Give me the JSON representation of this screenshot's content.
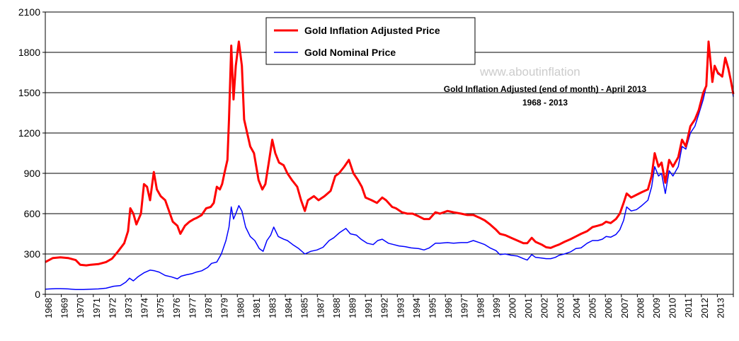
{
  "chart_data": {
    "type": "line",
    "title": "Gold Inflation Adjusted (end of month) - April 2013",
    "subtitle": "1968 - 2013",
    "watermark": "www.aboutinflation",
    "xlabel": "",
    "ylabel": "",
    "ylim": [
      0,
      2100
    ],
    "xlim": [
      1968.0,
      2013.33
    ],
    "yticks": [
      0,
      300,
      600,
      900,
      1200,
      1500,
      1800,
      2100
    ],
    "ytick_labels": [
      "0",
      "300",
      "600",
      "900",
      "1200",
      "1500",
      "1800",
      "2100"
    ],
    "xtick_labels": [
      "1968",
      "1969",
      "1970",
      "1971",
      "1972",
      "1973",
      "1974",
      "1975",
      "1976",
      "1977",
      "1978",
      "1979",
      "1980",
      "1981",
      "1983",
      "1984",
      "1985",
      "1987",
      "1988",
      "1989",
      "1991",
      "1992",
      "1993",
      "1994",
      "1995",
      "1996",
      "1997",
      "1998",
      "1999",
      "2000",
      "2001",
      "2002",
      "2003",
      "2004",
      "2005",
      "2006",
      "2007",
      "2008",
      "2009",
      "2010",
      "2011",
      "2012",
      "2013"
    ],
    "grid": true,
    "legend_position": "top-center",
    "series": [
      {
        "name": "Gold Inflation Adjusted Price",
        "color": "#ff0000",
        "points": [
          [
            1968.0,
            240
          ],
          [
            1968.5,
            270
          ],
          [
            1969.0,
            275
          ],
          [
            1969.5,
            270
          ],
          [
            1970.0,
            255
          ],
          [
            1970.3,
            220
          ],
          [
            1970.7,
            215
          ],
          [
            1971.0,
            220
          ],
          [
            1971.5,
            225
          ],
          [
            1972.0,
            240
          ],
          [
            1972.4,
            265
          ],
          [
            1972.8,
            320
          ],
          [
            1973.2,
            380
          ],
          [
            1973.45,
            470
          ],
          [
            1973.6,
            640
          ],
          [
            1973.8,
            600
          ],
          [
            1974.0,
            520
          ],
          [
            1974.3,
            600
          ],
          [
            1974.5,
            820
          ],
          [
            1974.7,
            800
          ],
          [
            1974.9,
            700
          ],
          [
            1975.15,
            910
          ],
          [
            1975.35,
            780
          ],
          [
            1975.6,
            730
          ],
          [
            1975.9,
            700
          ],
          [
            1976.15,
            620
          ],
          [
            1976.4,
            540
          ],
          [
            1976.7,
            510
          ],
          [
            1976.9,
            450
          ],
          [
            1977.2,
            510
          ],
          [
            1977.5,
            540
          ],
          [
            1977.8,
            560
          ],
          [
            1978.0,
            570
          ],
          [
            1978.3,
            590
          ],
          [
            1978.6,
            640
          ],
          [
            1978.9,
            650
          ],
          [
            1979.1,
            680
          ],
          [
            1979.3,
            800
          ],
          [
            1979.5,
            780
          ],
          [
            1979.65,
            820
          ],
          [
            1979.8,
            900
          ],
          [
            1980.0,
            1000
          ],
          [
            1980.1,
            1300
          ],
          [
            1980.25,
            1850
          ],
          [
            1980.4,
            1450
          ],
          [
            1980.55,
            1700
          ],
          [
            1980.75,
            1880
          ],
          [
            1980.95,
            1700
          ],
          [
            1981.1,
            1300
          ],
          [
            1981.3,
            1200
          ],
          [
            1981.5,
            1100
          ],
          [
            1981.75,
            1050
          ],
          [
            1982.05,
            850
          ],
          [
            1982.3,
            780
          ],
          [
            1982.5,
            820
          ],
          [
            1982.75,
            1000
          ],
          [
            1982.95,
            1150
          ],
          [
            1983.15,
            1050
          ],
          [
            1983.4,
            980
          ],
          [
            1983.7,
            960
          ],
          [
            1983.95,
            900
          ],
          [
            1984.25,
            850
          ],
          [
            1984.6,
            800
          ],
          [
            1984.85,
            700
          ],
          [
            1985.1,
            620
          ],
          [
            1985.3,
            700
          ],
          [
            1985.7,
            730
          ],
          [
            1986.0,
            700
          ],
          [
            1986.4,
            730
          ],
          [
            1986.8,
            770
          ],
          [
            1987.1,
            880
          ],
          [
            1987.35,
            900
          ],
          [
            1987.7,
            950
          ],
          [
            1988.0,
            1000
          ],
          [
            1988.3,
            900
          ],
          [
            1988.6,
            850
          ],
          [
            1988.85,
            800
          ],
          [
            1989.1,
            720
          ],
          [
            1989.5,
            700
          ],
          [
            1989.85,
            680
          ],
          [
            1990.2,
            720
          ],
          [
            1990.45,
            700
          ],
          [
            1990.85,
            650
          ],
          [
            1991.1,
            640
          ],
          [
            1991.5,
            610
          ],
          [
            1991.85,
            600
          ],
          [
            1992.2,
            600
          ],
          [
            1992.6,
            580
          ],
          [
            1992.95,
            560
          ],
          [
            1993.3,
            560
          ],
          [
            1993.7,
            610
          ],
          [
            1994.0,
            600
          ],
          [
            1994.5,
            620
          ],
          [
            1994.9,
            610
          ],
          [
            1995.4,
            600
          ],
          [
            1995.8,
            590
          ],
          [
            1996.2,
            590
          ],
          [
            1996.6,
            570
          ],
          [
            1996.95,
            550
          ],
          [
            1997.3,
            520
          ],
          [
            1997.7,
            480
          ],
          [
            1997.95,
            450
          ],
          [
            1998.3,
            440
          ],
          [
            1998.7,
            420
          ],
          [
            1999.1,
            400
          ],
          [
            1999.5,
            380
          ],
          [
            1999.75,
            380
          ],
          [
            2000.05,
            420
          ],
          [
            2000.3,
            390
          ],
          [
            2000.7,
            370
          ],
          [
            2001.0,
            350
          ],
          [
            2001.3,
            345
          ],
          [
            2001.6,
            360
          ],
          [
            2001.85,
            370
          ],
          [
            2002.2,
            390
          ],
          [
            2002.6,
            410
          ],
          [
            2002.95,
            430
          ],
          [
            2003.3,
            450
          ],
          [
            2003.7,
            470
          ],
          [
            2004.05,
            500
          ],
          [
            2004.4,
            510
          ],
          [
            2004.7,
            520
          ],
          [
            2004.95,
            540
          ],
          [
            2005.25,
            530
          ],
          [
            2005.6,
            560
          ],
          [
            2005.85,
            600
          ],
          [
            2006.1,
            680
          ],
          [
            2006.3,
            750
          ],
          [
            2006.6,
            720
          ],
          [
            2006.95,
            740
          ],
          [
            2007.3,
            760
          ],
          [
            2007.7,
            780
          ],
          [
            2007.95,
            880
          ],
          [
            2008.15,
            1050
          ],
          [
            2008.4,
            950
          ],
          [
            2008.6,
            980
          ],
          [
            2008.85,
            830
          ],
          [
            2009.1,
            1000
          ],
          [
            2009.35,
            950
          ],
          [
            2009.7,
            1020
          ],
          [
            2009.95,
            1150
          ],
          [
            2010.2,
            1100
          ],
          [
            2010.5,
            1250
          ],
          [
            2010.8,
            1300
          ],
          [
            2011.05,
            1370
          ],
          [
            2011.35,
            1500
          ],
          [
            2011.55,
            1550
          ],
          [
            2011.7,
            1880
          ],
          [
            2011.85,
            1700
          ],
          [
            2011.95,
            1580
          ],
          [
            2012.1,
            1700
          ],
          [
            2012.3,
            1650
          ],
          [
            2012.6,
            1620
          ],
          [
            2012.8,
            1760
          ],
          [
            2013.0,
            1680
          ],
          [
            2013.15,
            1600
          ],
          [
            2013.33,
            1490
          ]
        ]
      },
      {
        "name": "Gold Nominal Price",
        "color": "#0000ff",
        "points": [
          [
            1968.0,
            38
          ],
          [
            1968.3,
            40
          ],
          [
            1968.7,
            42
          ],
          [
            1969.0,
            42
          ],
          [
            1969.5,
            40
          ],
          [
            1970.0,
            36
          ],
          [
            1970.5,
            36
          ],
          [
            1971.0,
            38
          ],
          [
            1971.5,
            40
          ],
          [
            1972.0,
            45
          ],
          [
            1972.5,
            60
          ],
          [
            1972.95,
            65
          ],
          [
            1973.3,
            90
          ],
          [
            1973.55,
            120
          ],
          [
            1973.8,
            100
          ],
          [
            1974.1,
            130
          ],
          [
            1974.5,
            160
          ],
          [
            1974.9,
            180
          ],
          [
            1975.2,
            175
          ],
          [
            1975.5,
            165
          ],
          [
            1975.9,
            140
          ],
          [
            1976.3,
            130
          ],
          [
            1976.7,
            115
          ],
          [
            1976.95,
            135
          ],
          [
            1977.3,
            145
          ],
          [
            1977.7,
            155
          ],
          [
            1977.95,
            165
          ],
          [
            1978.3,
            175
          ],
          [
            1978.7,
            200
          ],
          [
            1978.95,
            230
          ],
          [
            1979.3,
            240
          ],
          [
            1979.6,
            300
          ],
          [
            1979.9,
            400
          ],
          [
            1980.1,
            500
          ],
          [
            1980.25,
            650
          ],
          [
            1980.4,
            560
          ],
          [
            1980.55,
            600
          ],
          [
            1980.75,
            660
          ],
          [
            1980.95,
            620
          ],
          [
            1981.2,
            500
          ],
          [
            1981.5,
            430
          ],
          [
            1981.8,
            400
          ],
          [
            1982.1,
            340
          ],
          [
            1982.35,
            320
          ],
          [
            1982.6,
            400
          ],
          [
            1982.85,
            440
          ],
          [
            1983.05,
            500
          ],
          [
            1983.35,
            430
          ],
          [
            1983.7,
            410
          ],
          [
            1983.95,
            400
          ],
          [
            1984.3,
            370
          ],
          [
            1984.7,
            340
          ],
          [
            1985.1,
            300
          ],
          [
            1985.5,
            320
          ],
          [
            1985.9,
            330
          ],
          [
            1986.3,
            350
          ],
          [
            1986.7,
            400
          ],
          [
            1987.0,
            420
          ],
          [
            1987.4,
            460
          ],
          [
            1987.8,
            490
          ],
          [
            1988.1,
            450
          ],
          [
            1988.5,
            440
          ],
          [
            1988.8,
            410
          ],
          [
            1989.2,
            380
          ],
          [
            1989.6,
            370
          ],
          [
            1989.9,
            400
          ],
          [
            1990.2,
            410
          ],
          [
            1990.6,
            380
          ],
          [
            1990.95,
            370
          ],
          [
            1991.3,
            360
          ],
          [
            1991.7,
            355
          ],
          [
            1992.1,
            345
          ],
          [
            1992.6,
            340
          ],
          [
            1992.95,
            330
          ],
          [
            1993.3,
            345
          ],
          [
            1993.7,
            380
          ],
          [
            1994.0,
            380
          ],
          [
            1994.5,
            385
          ],
          [
            1994.9,
            380
          ],
          [
            1995.4,
            385
          ],
          [
            1995.8,
            385
          ],
          [
            1996.2,
            400
          ],
          [
            1996.6,
            385
          ],
          [
            1996.95,
            370
          ],
          [
            1997.3,
            345
          ],
          [
            1997.7,
            325
          ],
          [
            1997.95,
            295
          ],
          [
            1998.3,
            300
          ],
          [
            1998.7,
            290
          ],
          [
            1999.1,
            285
          ],
          [
            1999.5,
            265
          ],
          [
            1999.75,
            255
          ],
          [
            2000.05,
            295
          ],
          [
            2000.3,
            275
          ],
          [
            2000.7,
            270
          ],
          [
            2001.0,
            265
          ],
          [
            2001.3,
            265
          ],
          [
            2001.6,
            275
          ],
          [
            2001.85,
            290
          ],
          [
            2002.2,
            300
          ],
          [
            2002.6,
            315
          ],
          [
            2002.95,
            340
          ],
          [
            2003.3,
            345
          ],
          [
            2003.7,
            380
          ],
          [
            2004.05,
            400
          ],
          [
            2004.4,
            400
          ],
          [
            2004.7,
            410
          ],
          [
            2004.95,
            430
          ],
          [
            2005.25,
            425
          ],
          [
            2005.6,
            445
          ],
          [
            2005.85,
            480
          ],
          [
            2006.1,
            550
          ],
          [
            2006.3,
            650
          ],
          [
            2006.6,
            620
          ],
          [
            2006.95,
            630
          ],
          [
            2007.3,
            660
          ],
          [
            2007.7,
            700
          ],
          [
            2007.95,
            800
          ],
          [
            2008.15,
            950
          ],
          [
            2008.4,
            880
          ],
          [
            2008.6,
            900
          ],
          [
            2008.85,
            750
          ],
          [
            2009.1,
            920
          ],
          [
            2009.35,
            880
          ],
          [
            2009.7,
            950
          ],
          [
            2009.95,
            1100
          ],
          [
            2010.2,
            1080
          ],
          [
            2010.5,
            1200
          ],
          [
            2010.8,
            1250
          ],
          [
            2011.05,
            1340
          ],
          [
            2011.35,
            1450
          ],
          [
            2011.55,
            1550
          ],
          [
            2011.7,
            1820
          ],
          [
            2011.85,
            1700
          ],
          [
            2011.95,
            1580
          ],
          [
            2012.1,
            1700
          ],
          [
            2012.3,
            1640
          ],
          [
            2012.6,
            1620
          ],
          [
            2012.8,
            1750
          ],
          [
            2013.0,
            1670
          ],
          [
            2013.15,
            1600
          ],
          [
            2013.33,
            1470
          ]
        ]
      }
    ]
  }
}
